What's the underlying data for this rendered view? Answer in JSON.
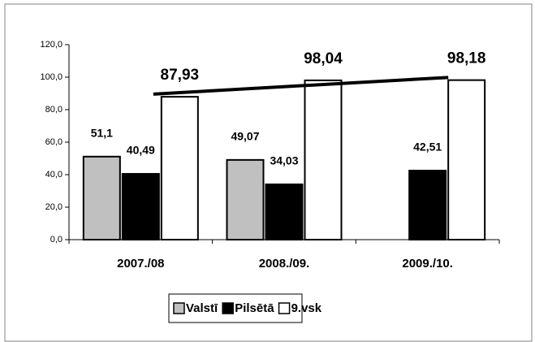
{
  "chart_data": {
    "type": "bar",
    "categories": [
      "2007./08",
      "2008./09.",
      "2009./10."
    ],
    "series": [
      {
        "name": "Valstī",
        "color": "#c0c0c0",
        "values": [
          51.1,
          49.07,
          null
        ],
        "value_labels": [
          "51,1",
          "49,07",
          null
        ]
      },
      {
        "name": "Pilsētā",
        "color": "#000000",
        "values": [
          40.49,
          34.03,
          42.51
        ],
        "value_labels": [
          "40,49",
          "34,03",
          "42,51"
        ]
      },
      {
        "name": "9.vsk",
        "color": "#ffffff",
        "values": [
          87.93,
          98.04,
          98.18
        ],
        "value_labels": [
          "87,93",
          "98,04",
          "98,18"
        ],
        "trendline": true
      }
    ],
    "ylim": [
      0,
      120
    ],
    "yticks": [
      {
        "value": 0,
        "label": "0,0"
      },
      {
        "value": 20,
        "label": "20,0"
      },
      {
        "value": 40,
        "label": "40,0"
      },
      {
        "value": 60,
        "label": "60,0"
      },
      {
        "value": 80,
        "label": "80,0"
      },
      {
        "value": 100,
        "label": "100,0"
      },
      {
        "value": 120,
        "label": "120,0"
      }
    ],
    "legend": "bottom"
  }
}
